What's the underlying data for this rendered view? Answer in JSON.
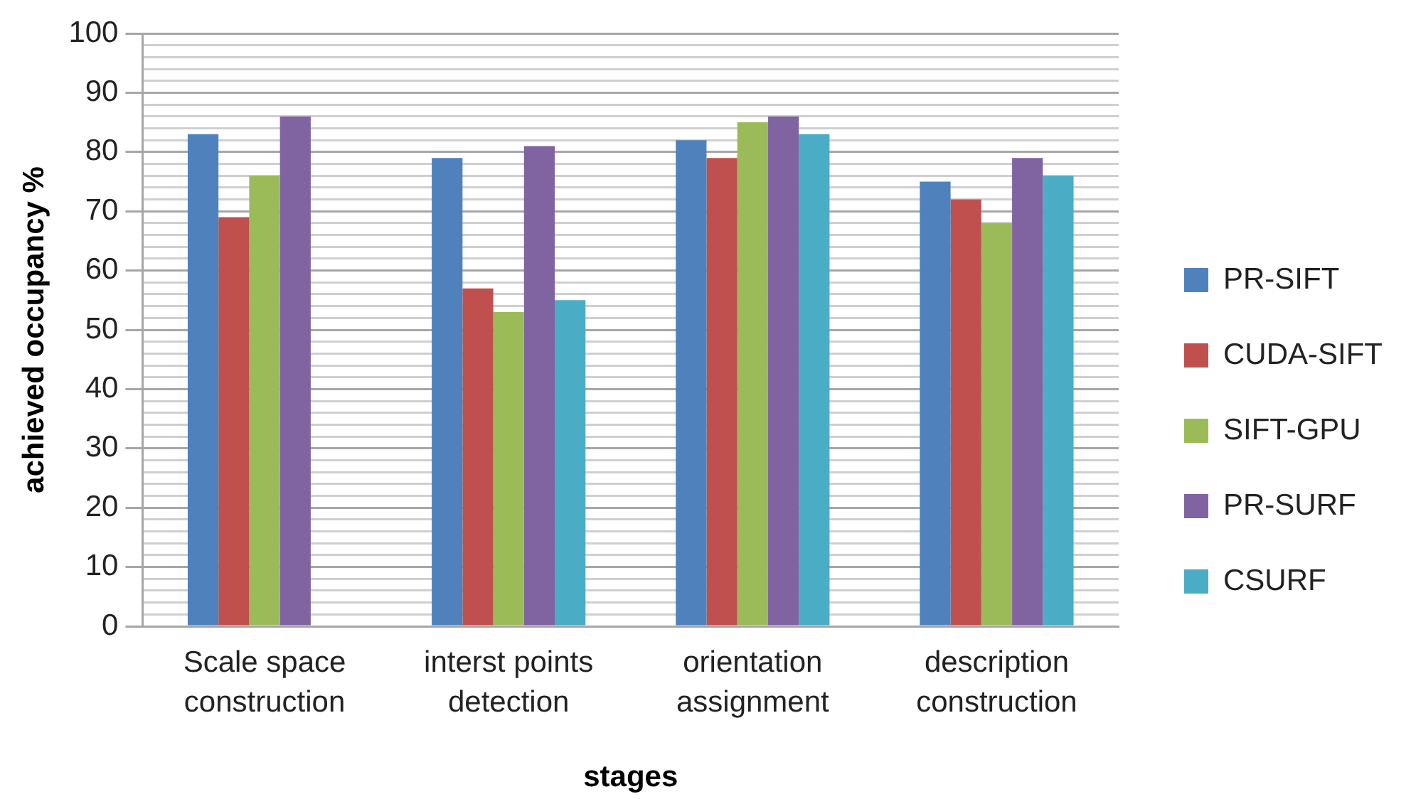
{
  "chart_data": {
    "type": "bar",
    "categories": [
      "Scale space construction",
      "interst points detection",
      "orientation assignment",
      "description construction"
    ],
    "series": [
      {
        "name": "PR-SIFT",
        "color": "#4f81bd",
        "values": [
          83,
          79,
          82,
          75
        ]
      },
      {
        "name": "CUDA-SIFT",
        "color": "#c0504d",
        "values": [
          69,
          57,
          79,
          72
        ]
      },
      {
        "name": "SIFT-GPU",
        "color": "#9bbb59",
        "values": [
          76,
          53,
          85,
          68
        ]
      },
      {
        "name": "PR-SURF",
        "color": "#8064a2",
        "values": [
          86,
          81,
          86,
          79
        ]
      },
      {
        "name": "CSURF",
        "color": "#4bacc6",
        "values": [
          null,
          55,
          83,
          76
        ]
      }
    ],
    "xlabel": "stages",
    "ylabel": "achieved occupancy %",
    "ylim": [
      0,
      100
    ],
    "yticks": [
      0,
      {
        "value": 2,
        "label": null
      },
      {
        "value": 4,
        "label": null
      },
      {
        "value": 6,
        "label": null
      },
      {
        "value": 8,
        "label": null
      },
      10,
      {
        "value": 12,
        "label": null
      },
      {
        "value": 14,
        "label": null
      },
      {
        "value": 16,
        "label": null
      },
      {
        "value": 18,
        "label": null
      },
      20,
      {
        "value": 22,
        "label": null
      },
      {
        "value": 24,
        "label": null
      },
      {
        "value": 26,
        "label": null
      },
      {
        "value": 28,
        "label": null
      },
      30,
      {
        "value": 32,
        "label": null
      },
      {
        "value": 34,
        "label": null
      },
      {
        "value": 36,
        "label": null
      },
      {
        "value": 38,
        "label": null
      },
      40,
      {
        "value": 42,
        "label": null
      },
      {
        "value": 44,
        "label": null
      },
      {
        "value": 46,
        "label": null
      },
      {
        "value": 48,
        "label": null
      },
      50,
      {
        "value": 52,
        "label": null
      },
      {
        "value": 54,
        "label": null
      },
      {
        "value": 56,
        "label": null
      },
      {
        "value": 58,
        "label": null
      },
      60,
      {
        "value": 62,
        "label": null
      },
      {
        "value": 64,
        "label": null
      },
      {
        "value": 66,
        "label": null
      },
      {
        "value": 68,
        "label": null
      },
      70,
      {
        "value": 72,
        "label": null
      },
      {
        "value": 74,
        "label": null
      },
      {
        "value": 76,
        "label": null
      },
      {
        "value": 78,
        "label": null
      },
      80,
      {
        "value": 82,
        "label": null
      },
      {
        "value": 84,
        "label": null
      },
      {
        "value": 86,
        "label": null
      },
      {
        "value": 88,
        "label": null
      },
      90,
      {
        "value": 92,
        "label": null
      },
      {
        "value": 94,
        "label": null
      },
      {
        "value": 96,
        "label": null
      },
      {
        "value": 98,
        "label": null
      },
      100
    ],
    "grid": "y",
    "legend": "right"
  }
}
